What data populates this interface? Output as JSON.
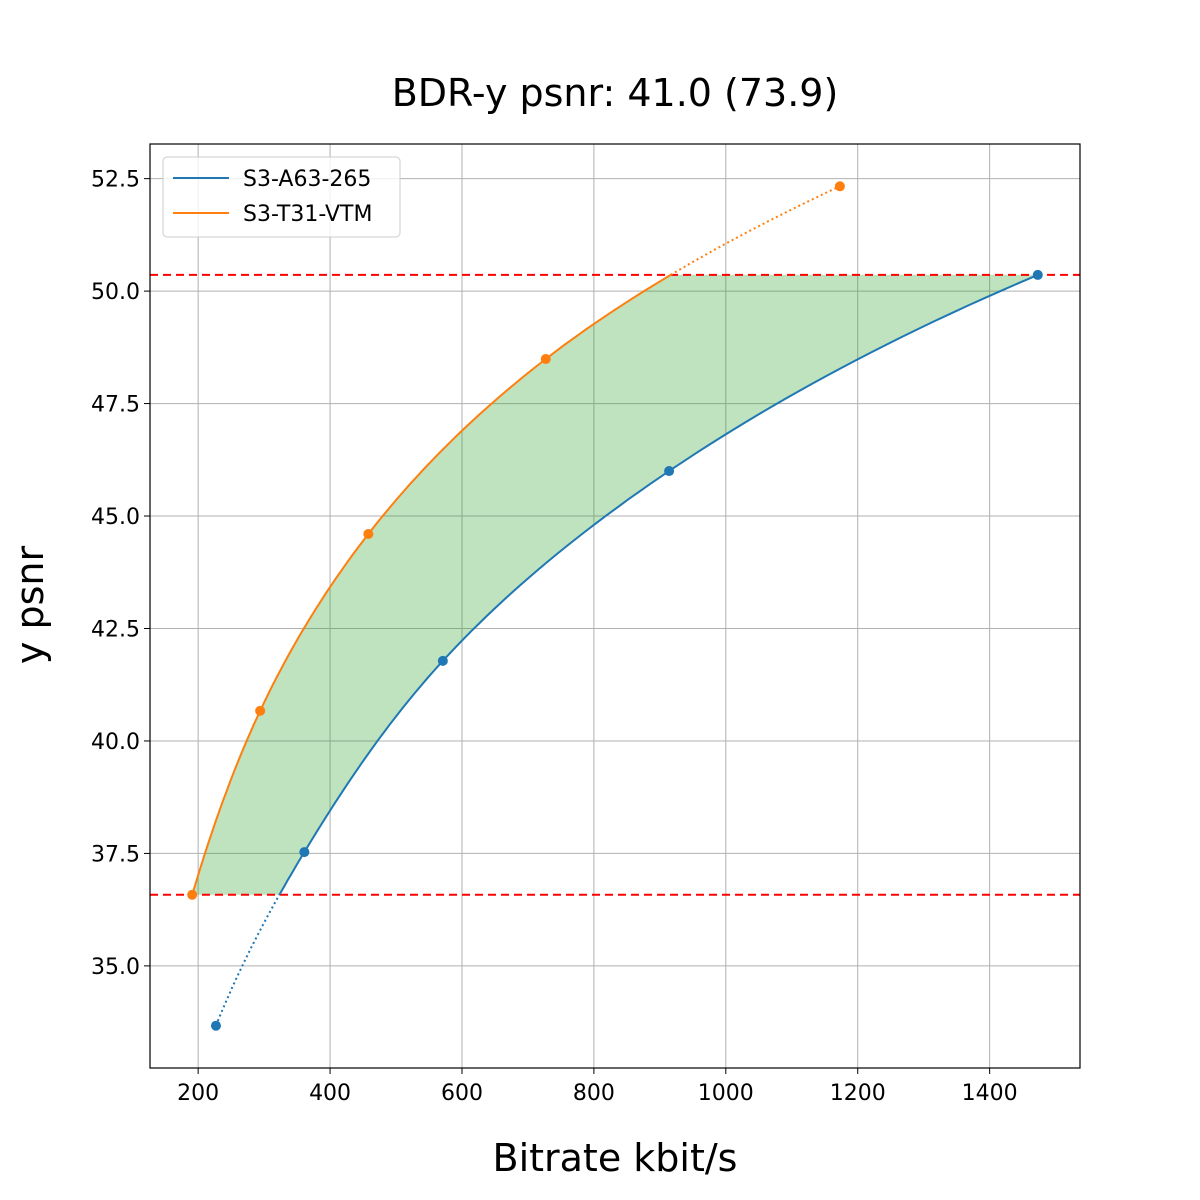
{
  "chart_data": {
    "type": "line",
    "title": "BDR-y psnr: 41.0 (73.9)",
    "xlabel": "Bitrate kbit/s",
    "ylabel": "y psnr",
    "xlim": [
      127,
      1537
    ],
    "ylim": [
      32.73,
      53.27
    ],
    "xticks": [
      200,
      400,
      600,
      800,
      1000,
      1200,
      1400
    ],
    "yticks": [
      35.0,
      37.5,
      40.0,
      42.5,
      45.0,
      47.5,
      50.0,
      52.5
    ],
    "xtick_labels": [
      "200",
      "400",
      "600",
      "800",
      "1000",
      "1200",
      "1400"
    ],
    "ytick_labels": [
      "35.0",
      "37.5",
      "40.0",
      "42.5",
      "45.0",
      "47.5",
      "50.0",
      "52.5"
    ],
    "grid": true,
    "legend_position": "top-left",
    "series": [
      {
        "name": "S3-A63-265",
        "color": "#1f77b4",
        "x": [
          227,
          361,
          571,
          914,
          1473
        ],
        "y": [
          33.67,
          37.53,
          41.78,
          46.0,
          50.36
        ]
      },
      {
        "name": "S3-T31-VTM",
        "color": "#ff7f0e",
        "x": [
          191,
          294,
          458,
          727,
          1173
        ],
        "y": [
          36.58,
          40.67,
          44.6,
          48.49,
          52.33
        ]
      }
    ],
    "reference_lines": {
      "y": [
        36.58,
        50.36
      ],
      "color": "#ff0000",
      "style": "dashed"
    },
    "fill_between_color": "#2ca02c"
  }
}
